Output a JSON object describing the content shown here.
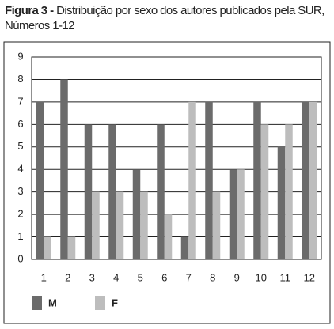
{
  "chart_data": {
    "type": "bar",
    "title_label": "Figura 3 -",
    "title": "Distribuição por sexo dos autores publicados pela SUR, Números 1-12",
    "categories": [
      "1",
      "2",
      "3",
      "4",
      "5",
      "6",
      "7",
      "8",
      "9",
      "10",
      "11",
      "12"
    ],
    "series": [
      {
        "name": "M",
        "color": "#6b6b6b",
        "values": [
          7,
          8,
          6,
          6,
          4,
          6,
          1,
          7,
          4,
          7,
          5,
          7
        ]
      },
      {
        "name": "F",
        "color": "#bdbdbd",
        "values": [
          1,
          1,
          3,
          3,
          3,
          2,
          7,
          3,
          4,
          6,
          6,
          7
        ]
      }
    ],
    "ylim": [
      0,
      9
    ],
    "yticks": [
      0,
      1,
      2,
      3,
      4,
      5,
      6,
      7,
      8,
      9
    ],
    "grid": true
  }
}
